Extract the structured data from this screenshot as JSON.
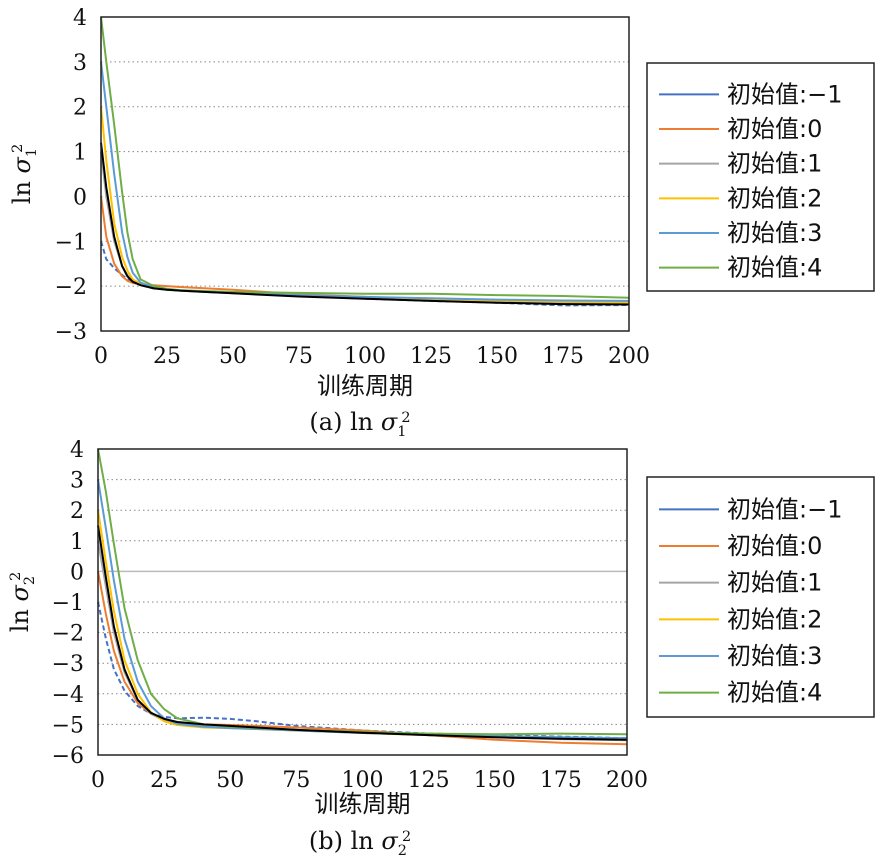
{
  "chart_data": [
    {
      "type": "line",
      "caption": "(a) ln σ₁²",
      "xlabel": "训练周期",
      "ylabel": "ln σ₁²",
      "xlim": [
        0,
        200
      ],
      "ylim": [
        -3,
        4
      ],
      "xticks": [
        0,
        25,
        50,
        75,
        100,
        125,
        150,
        175,
        200
      ],
      "yticks": [
        -3,
        -2,
        -1,
        0,
        1,
        2,
        3,
        4
      ],
      "grid": "horizontal dotted",
      "legend_position": "right",
      "series": [
        {
          "name": "初始值:−1",
          "color": "#4472c4",
          "dashed": true,
          "x": [
            0,
            2,
            5,
            8,
            10,
            12,
            15,
            20,
            25,
            30,
            40,
            50,
            75,
            100,
            125,
            150,
            175,
            200
          ],
          "y": [
            -1,
            -1.4,
            -1.6,
            -1.75,
            -1.85,
            -1.9,
            -1.98,
            -2.05,
            -2.08,
            -2.1,
            -2.12,
            -2.14,
            -2.22,
            -2.28,
            -2.33,
            -2.37,
            -2.43,
            -2.42
          ]
        },
        {
          "name": "初始值:0",
          "color": "#ed7d31",
          "x": [
            0,
            2,
            5,
            8,
            10,
            12,
            15,
            20,
            25,
            30,
            40,
            50,
            75,
            100,
            125,
            150,
            175,
            200
          ],
          "y": [
            0,
            -0.9,
            -1.5,
            -1.78,
            -1.88,
            -1.93,
            -1.96,
            -1.98,
            -2.0,
            -2.02,
            -2.05,
            -2.08,
            -2.18,
            -2.24,
            -2.3,
            -2.34,
            -2.38,
            -2.4
          ]
        },
        {
          "name": "初始值:1",
          "color": "#a5a5a5",
          "x": [
            0,
            2,
            5,
            8,
            10,
            12,
            15,
            20,
            25,
            30,
            40,
            50,
            75,
            100,
            125,
            150,
            175,
            200
          ],
          "y": [
            1,
            0.0,
            -1.0,
            -1.55,
            -1.75,
            -1.88,
            -1.97,
            -2.04,
            -2.07,
            -2.1,
            -2.13,
            -2.16,
            -2.22,
            -2.27,
            -2.32,
            -2.35,
            -2.38,
            -2.38
          ]
        },
        {
          "name": "初始值:2",
          "color": "#ffc000",
          "x": [
            0,
            2,
            5,
            8,
            10,
            12,
            15,
            20,
            25,
            30,
            40,
            50,
            75,
            100,
            125,
            150,
            175,
            200
          ],
          "y": [
            2,
            0.8,
            -0.6,
            -1.35,
            -1.65,
            -1.85,
            -1.95,
            -2.03,
            -2.07,
            -2.1,
            -2.12,
            -2.14,
            -2.2,
            -2.25,
            -2.29,
            -2.32,
            -2.35,
            -2.36
          ]
        },
        {
          "name": "初始值:3",
          "color": "#5b9bd5",
          "x": [
            0,
            2,
            5,
            8,
            10,
            12,
            15,
            20,
            25,
            30,
            40,
            50,
            75,
            100,
            125,
            150,
            175,
            200
          ],
          "y": [
            3,
            2.0,
            0.5,
            -0.8,
            -1.35,
            -1.7,
            -1.92,
            -2.03,
            -2.08,
            -2.1,
            -2.13,
            -2.15,
            -2.2,
            -2.24,
            -2.27,
            -2.3,
            -2.32,
            -2.33
          ]
        },
        {
          "name": "初始值:4",
          "color": "#70ad47",
          "x": [
            0,
            2,
            5,
            8,
            10,
            12,
            15,
            20,
            25,
            30,
            40,
            50,
            75,
            100,
            125,
            150,
            175,
            200
          ],
          "y": [
            4,
            3.0,
            1.6,
            0.1,
            -0.8,
            -1.4,
            -1.85,
            -2.0,
            -2.06,
            -2.09,
            -2.11,
            -2.13,
            -2.15,
            -2.17,
            -2.17,
            -2.2,
            -2.22,
            -2.26
          ]
        },
        {
          "name": "",
          "color": "#000000",
          "x": [
            0,
            2,
            5,
            8,
            10,
            12,
            15,
            20,
            25,
            30,
            40,
            50,
            75,
            100,
            125,
            150,
            175,
            200
          ],
          "y": [
            1.2,
            0.2,
            -0.9,
            -1.55,
            -1.78,
            -1.9,
            -1.98,
            -2.05,
            -2.08,
            -2.1,
            -2.13,
            -2.16,
            -2.23,
            -2.28,
            -2.33,
            -2.37,
            -2.4,
            -2.41
          ]
        }
      ]
    },
    {
      "type": "line",
      "caption": "(b) ln σ₂²",
      "xlabel": "训练周期",
      "ylabel": "ln σ₂²",
      "xlim": [
        0,
        200
      ],
      "ylim": [
        -6,
        4
      ],
      "xticks": [
        0,
        25,
        50,
        75,
        100,
        125,
        150,
        175,
        200
      ],
      "yticks": [
        -6,
        -5,
        -4,
        -3,
        -2,
        -1,
        0,
        1,
        2,
        3,
        4
      ],
      "grid": "horizontal dotted",
      "legend_position": "right",
      "series": [
        {
          "name": "初始值:−1",
          "color": "#4472c4",
          "dashed": true,
          "x": [
            0,
            3,
            6,
            10,
            15,
            20,
            25,
            30,
            40,
            50,
            60,
            75,
            100,
            125,
            150,
            175,
            200
          ],
          "y": [
            -1,
            -2.2,
            -3.2,
            -3.9,
            -4.4,
            -4.65,
            -4.75,
            -4.8,
            -4.78,
            -4.82,
            -4.9,
            -5.05,
            -5.2,
            -5.3,
            -5.35,
            -5.4,
            -5.45
          ]
        },
        {
          "name": "初始值:0",
          "color": "#ed7d31",
          "x": [
            0,
            3,
            6,
            10,
            15,
            20,
            25,
            30,
            40,
            50,
            60,
            75,
            100,
            125,
            150,
            175,
            200
          ],
          "y": [
            0,
            -1.4,
            -2.6,
            -3.6,
            -4.3,
            -4.65,
            -4.85,
            -4.95,
            -5.0,
            -5.02,
            -5.05,
            -5.1,
            -5.2,
            -5.35,
            -5.5,
            -5.6,
            -5.65
          ]
        },
        {
          "name": "初始值:1",
          "color": "#a5a5a5",
          "x": [
            0,
            3,
            6,
            10,
            15,
            20,
            25,
            30,
            40,
            50,
            60,
            75,
            100,
            125,
            150,
            175,
            200
          ],
          "y": [
            1,
            -0.5,
            -2.0,
            -3.3,
            -4.2,
            -4.65,
            -4.88,
            -4.98,
            -5.05,
            -5.08,
            -5.1,
            -5.18,
            -5.27,
            -5.35,
            -5.42,
            -5.48,
            -5.52
          ]
        },
        {
          "name": "初始值:2",
          "color": "#ffc000",
          "x": [
            0,
            3,
            6,
            10,
            15,
            20,
            25,
            30,
            40,
            50,
            60,
            75,
            100,
            125,
            150,
            175,
            200
          ],
          "y": [
            2,
            0.3,
            -1.3,
            -2.9,
            -4.0,
            -4.6,
            -4.9,
            -5.02,
            -5.1,
            -5.12,
            -5.15,
            -5.2,
            -5.28,
            -5.35,
            -5.4,
            -5.45,
            -5.5
          ]
        },
        {
          "name": "初始值:3",
          "color": "#5b9bd5",
          "x": [
            0,
            3,
            6,
            10,
            15,
            20,
            25,
            30,
            40,
            50,
            60,
            75,
            100,
            125,
            150,
            175,
            200
          ],
          "y": [
            3,
            1.4,
            -0.3,
            -2.2,
            -3.6,
            -4.4,
            -4.8,
            -4.98,
            -5.08,
            -5.12,
            -5.15,
            -5.2,
            -5.28,
            -5.34,
            -5.38,
            -5.42,
            -5.45
          ]
        },
        {
          "name": "初始值:4",
          "color": "#70ad47",
          "x": [
            0,
            3,
            6,
            10,
            15,
            20,
            25,
            30,
            40,
            50,
            60,
            75,
            100,
            125,
            150,
            175,
            200
          ],
          "y": [
            4,
            2.6,
            0.9,
            -1.2,
            -2.9,
            -4.0,
            -4.5,
            -4.8,
            -5.0,
            -5.08,
            -5.12,
            -5.18,
            -5.25,
            -5.3,
            -5.32,
            -5.3,
            -5.32
          ]
        },
        {
          "name": "",
          "color": "#000000",
          "x": [
            0,
            3,
            6,
            10,
            15,
            20,
            25,
            30,
            40,
            50,
            60,
            75,
            100,
            125,
            150,
            175,
            200
          ],
          "y": [
            1.5,
            -0.2,
            -1.8,
            -3.2,
            -4.2,
            -4.62,
            -4.82,
            -4.92,
            -5.0,
            -5.05,
            -5.1,
            -5.18,
            -5.27,
            -5.35,
            -5.42,
            -5.47,
            -5.5
          ]
        }
      ]
    }
  ]
}
